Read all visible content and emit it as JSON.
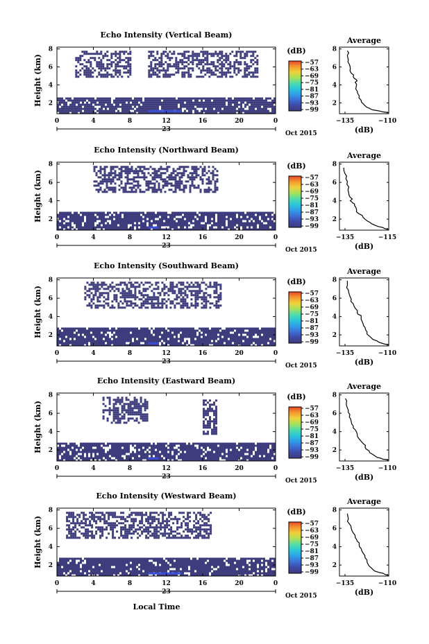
{
  "panels": [
    {
      "title": "Echo Intensity (Vertical Beam)",
      "avg_xticks": [
        "−135",
        "−110"
      ],
      "avg_xlim": [
        -135,
        -110
      ],
      "avg_profile": [
        [
          -110,
          0.9
        ],
        [
          -113,
          1.0
        ],
        [
          -116,
          1.15
        ],
        [
          -119,
          1.3
        ],
        [
          -121,
          1.5
        ],
        [
          -123,
          1.9
        ],
        [
          -124,
          2.3
        ],
        [
          -125,
          2.8
        ],
        [
          -126,
          3.3
        ],
        [
          -126.5,
          3.8
        ],
        [
          -127,
          4.3
        ],
        [
          -126.5,
          4.6
        ],
        [
          -128,
          4.9
        ],
        [
          -129,
          5.3
        ],
        [
          -129.5,
          5.8
        ],
        [
          -130,
          6.3
        ],
        [
          -130.5,
          6.8
        ],
        [
          -131,
          7.3
        ],
        [
          -131,
          7.8
        ]
      ]
    },
    {
      "title": "Echo Intensity (Northward Beam)",
      "avg_xticks": [
        "−135",
        "−115"
      ],
      "avg_xlim": [
        -135,
        -112
      ],
      "avg_profile": [
        [
          -112,
          0.9
        ],
        [
          -114,
          1.0
        ],
        [
          -117,
          1.2
        ],
        [
          -120,
          1.5
        ],
        [
          -122,
          1.8
        ],
        [
          -124,
          2.2
        ],
        [
          -126,
          2.6
        ],
        [
          -127,
          3.0
        ],
        [
          -128,
          3.5
        ],
        [
          -129,
          3.8
        ],
        [
          -130,
          4.0
        ],
        [
          -129,
          4.2
        ],
        [
          -130.5,
          4.6
        ],
        [
          -131,
          5.2
        ],
        [
          -131.5,
          5.8
        ],
        [
          -132,
          6.4
        ],
        [
          -132.5,
          7.0
        ],
        [
          -133,
          7.6
        ]
      ]
    },
    {
      "title": "Echo Intensity (Southward Beam)",
      "avg_xticks": [
        "−135",
        "−110"
      ],
      "avg_xlim": [
        -135,
        -110
      ],
      "avg_profile": [
        [
          -110,
          0.9
        ],
        [
          -112,
          1.0
        ],
        [
          -115,
          1.2
        ],
        [
          -118,
          1.5
        ],
        [
          -120,
          1.9
        ],
        [
          -121,
          2.3
        ],
        [
          -122,
          2.8
        ],
        [
          -123,
          3.2
        ],
        [
          -124,
          3.7
        ],
        [
          -124,
          4.1
        ],
        [
          -126,
          4.4
        ],
        [
          -127,
          4.9
        ],
        [
          -128,
          5.4
        ],
        [
          -129,
          5.9
        ],
        [
          -130,
          6.4
        ],
        [
          -130.5,
          6.9
        ],
        [
          -131,
          7.4
        ],
        [
          -131,
          7.9
        ]
      ]
    },
    {
      "title": "Echo Intensity (Eastward Beam)",
      "avg_xticks": [
        "−135",
        "−110"
      ],
      "avg_xlim": [
        -135,
        -110
      ],
      "avg_profile": [
        [
          -110,
          0.9
        ],
        [
          -113,
          1.0
        ],
        [
          -116,
          1.2
        ],
        [
          -118,
          1.5
        ],
        [
          -120,
          1.9
        ],
        [
          -122,
          2.3
        ],
        [
          -123,
          2.7
        ],
        [
          -125,
          3.2
        ],
        [
          -126,
          3.7
        ],
        [
          -127,
          4.2
        ],
        [
          -128,
          4.6
        ],
        [
          -129,
          5.1
        ],
        [
          -130,
          5.6
        ],
        [
          -130.5,
          6.1
        ],
        [
          -131,
          6.6
        ],
        [
          -131.5,
          7.1
        ],
        [
          -132,
          7.6
        ]
      ]
    },
    {
      "title": "Echo Intensity (Westward Beam)",
      "avg_xticks": [
        "−135",
        "−110"
      ],
      "avg_xlim": [
        -135,
        -110
      ],
      "avg_profile": [
        [
          -110,
          0.9
        ],
        [
          -112,
          1.0
        ],
        [
          -115,
          1.2
        ],
        [
          -118,
          1.5
        ],
        [
          -120,
          1.9
        ],
        [
          -121,
          2.3
        ],
        [
          -122,
          2.8
        ],
        [
          -123,
          3.3
        ],
        [
          -124,
          3.8
        ],
        [
          -125,
          4.2
        ],
        [
          -126,
          4.6
        ],
        [
          -127,
          5.0
        ],
        [
          -128,
          5.5
        ],
        [
          -129,
          6.0
        ],
        [
          -130,
          6.5
        ],
        [
          -130.5,
          7.0
        ],
        [
          -131,
          7.6
        ]
      ]
    }
  ],
  "common": {
    "ylabel": "Height (km)",
    "yticks": [
      "2",
      "4",
      "6",
      "8"
    ],
    "ylim": [
      0.8,
      8.2
    ],
    "xticks": [
      "0",
      "4",
      "8",
      "12",
      "16",
      "20",
      "0"
    ],
    "xlim": [
      0,
      24
    ],
    "day_label": "23",
    "month_label": "Oct 2015",
    "cbar_title": "(dB)",
    "cbar_ticks": [
      "−57",
      "−63",
      "−69",
      "−75",
      "−81",
      "−87",
      "−93",
      "−99"
    ],
    "avg_title": "Average",
    "avg_xlabel": "(dB)",
    "bottom_xlabel": "Local Time"
  },
  "colors": {
    "echo_fill": "#3e3c7c",
    "echo_strong": "#3a4fd8",
    "colorbar": [
      "#3e3c7c",
      "#3f49a6",
      "#3b6fd4",
      "#2f9ee8",
      "#29c7d8",
      "#4fdcaa",
      "#a6e25a",
      "#f0d23a",
      "#f59a2e",
      "#e8452a"
    ]
  },
  "chart_data": [
    {
      "type": "heatmap",
      "title": "Echo Intensity (Vertical Beam)",
      "xlabel": "",
      "ylabel": "Height (km)",
      "xlim": [
        0,
        24
      ],
      "ylim": [
        0.8,
        8.2
      ],
      "regions": [
        {
          "x": [
            0,
            24
          ],
          "y": [
            0.9,
            2.6
          ],
          "level": -99
        },
        {
          "x": [
            2,
            8
          ],
          "y": [
            5,
            7.8
          ],
          "level": -99
        },
        {
          "x": [
            10,
            22
          ],
          "y": [
            5,
            7.8
          ],
          "level": -99
        },
        {
          "x": [
            10,
            13.5
          ],
          "y": [
            1.0,
            1.2
          ],
          "level": -93
        }
      ]
    },
    {
      "type": "heatmap",
      "title": "Echo Intensity (Northward Beam)",
      "xlabel": "",
      "ylabel": "Height (km)",
      "xlim": [
        0,
        24
      ],
      "ylim": [
        0.8,
        8.2
      ],
      "regions": [
        {
          "x": [
            0,
            24
          ],
          "y": [
            0.9,
            2.8
          ],
          "level": -99
        },
        {
          "x": [
            4,
            17.5
          ],
          "y": [
            5,
            7.8
          ],
          "level": -99
        },
        {
          "x": [
            10,
            11
          ],
          "y": [
            1.0,
            1.2
          ],
          "level": -93
        }
      ]
    },
    {
      "type": "heatmap",
      "title": "Echo Intensity (Southward Beam)",
      "xlabel": "",
      "ylabel": "Height (km)",
      "xlim": [
        0,
        24
      ],
      "ylim": [
        0.8,
        8.2
      ],
      "regions": [
        {
          "x": [
            0,
            24
          ],
          "y": [
            0.9,
            2.8
          ],
          "level": -99
        },
        {
          "x": [
            3,
            18
          ],
          "y": [
            5,
            7.8
          ],
          "level": -99
        },
        {
          "x": [
            10,
            11
          ],
          "y": [
            1.0,
            1.2
          ],
          "level": -93
        }
      ]
    },
    {
      "type": "heatmap",
      "title": "Echo Intensity (Eastward Beam)",
      "xlabel": "",
      "ylabel": "Height (km)",
      "xlim": [
        0,
        24
      ],
      "ylim": [
        0.8,
        8.2
      ],
      "regions": [
        {
          "x": [
            0,
            24
          ],
          "y": [
            0.9,
            2.8
          ],
          "level": -99
        },
        {
          "x": [
            5,
            10
          ],
          "y": [
            5,
            7.8
          ],
          "level": -99
        },
        {
          "x": [
            16,
            17.5
          ],
          "y": [
            3.8,
            7.5
          ],
          "level": -99
        },
        {
          "x": [
            10,
            11
          ],
          "y": [
            1.0,
            1.2
          ],
          "level": -93
        }
      ]
    },
    {
      "type": "heatmap",
      "title": "Echo Intensity (Westward Beam)",
      "xlabel": "Local Time",
      "ylabel": "Height (km)",
      "xlim": [
        0,
        24
      ],
      "ylim": [
        0.8,
        8.2
      ],
      "regions": [
        {
          "x": [
            0,
            24
          ],
          "y": [
            0.9,
            2.8
          ],
          "level": -99
        },
        {
          "x": [
            1,
            17
          ],
          "y": [
            5,
            7.8
          ],
          "level": -99
        },
        {
          "x": [
            10,
            13.5
          ],
          "y": [
            1.0,
            1.2
          ],
          "level": -93
        }
      ]
    }
  ]
}
